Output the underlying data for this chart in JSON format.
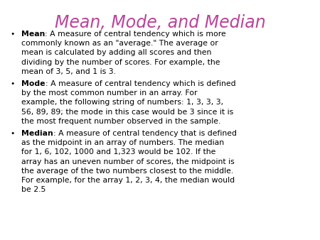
{
  "title": "Mean, Mode, and Median",
  "title_color": "#BB4499",
  "title_fontsize": 17,
  "background_color": "#FFFFFF",
  "bullet_color": "#000000",
  "body_fontsize": 7.8,
  "bold_color": "#000000",
  "figsize": [
    4.5,
    3.38
  ],
  "dpi": 100,
  "items": [
    {
      "bold": "Mean",
      "text": ": A measure of central tendency which is more\ncommonly known as an \"average.\" The average or\nmean is calculated by adding all scores and then\ndividing by the number of scores. For example, the\nmean of 3, 5, and 1 is 3."
    },
    {
      "bold": "Mode",
      "text": ": A measure of central tendency which is defined\nby the most common number in an array. For\nexample, the following string of numbers: 1, 3, 3, 3,\n56, 89, 89; the mode in this case would be 3 since it is\nthe most frequent number observed in the sample."
    },
    {
      "bold": "Median",
      "text": ": A measure of central tendency that is defined\nas the midpoint in an array of numbers. The median\nfor 1, 6, 102, 1000 and 1,323 would be 102. If the\narray has an uneven number of scores, the midpoint is\nthe average of the two numbers closest to the middle.\nFor example, for the array 1, 2, 3, 4, the median would\nbe 2.5"
    }
  ]
}
